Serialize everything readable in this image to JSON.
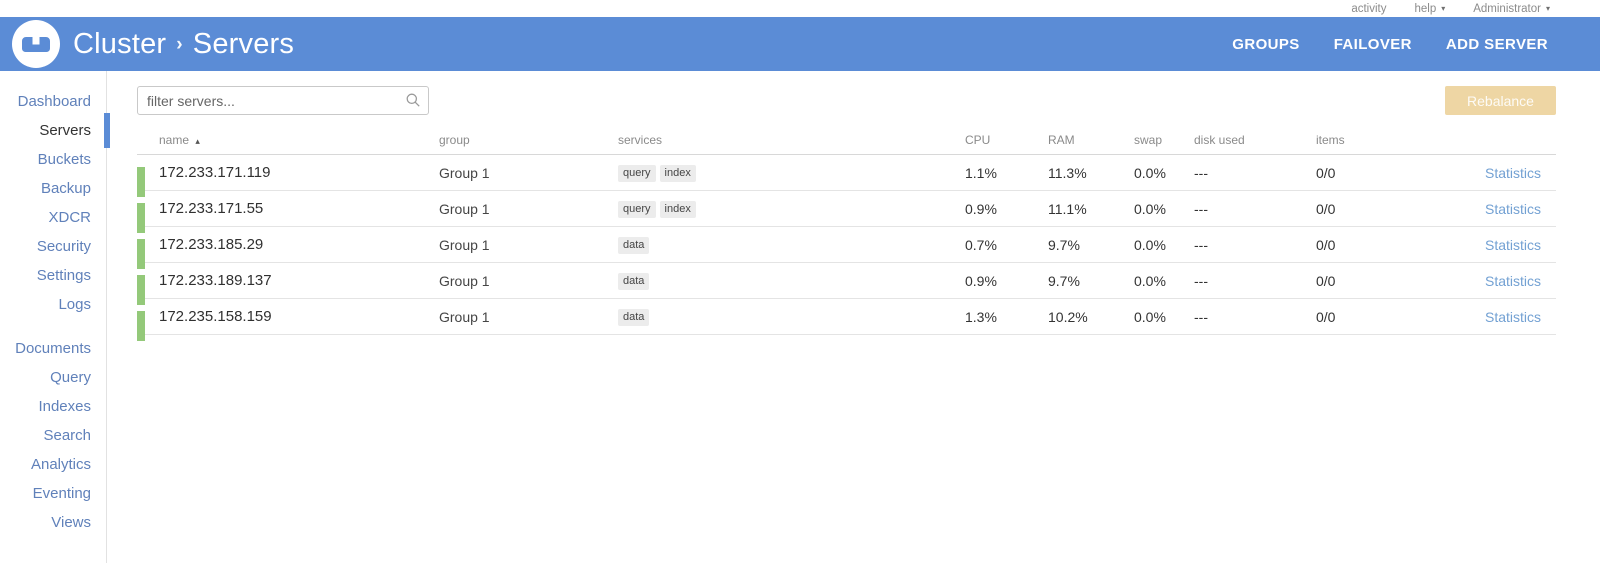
{
  "topbar": {
    "activity": "activity",
    "help": "help",
    "user": "Administrator"
  },
  "appbar": {
    "breadcrumb_root": "Cluster",
    "breadcrumb_sep": "›",
    "breadcrumb_page": "Servers",
    "actions": {
      "groups": "GROUPS",
      "failover": "FAILOVER",
      "add_server": "ADD SERVER"
    }
  },
  "sidebar": {
    "active": "Servers",
    "group1": [
      "Dashboard",
      "Servers",
      "Buckets",
      "Backup",
      "XDCR",
      "Security",
      "Settings",
      "Logs"
    ],
    "group2": [
      "Documents",
      "Query",
      "Indexes",
      "Search",
      "Analytics",
      "Eventing",
      "Views"
    ]
  },
  "toolbar": {
    "filter_placeholder": "filter servers...",
    "rebalance_label": "Rebalance"
  },
  "table": {
    "headers": {
      "name": "name",
      "group": "group",
      "services": "services",
      "cpu": "CPU",
      "ram": "RAM",
      "swap": "swap",
      "disk": "disk used",
      "items": "items"
    },
    "sort": {
      "column": "name",
      "direction": "asc",
      "arrow": "▴"
    },
    "rows": [
      {
        "name": "172.233.171.119",
        "group": "Group 1",
        "services": [
          "query",
          "index"
        ],
        "cpu": "1.1%",
        "ram": "11.3%",
        "swap": "0.0%",
        "disk": "---",
        "items": "0/0",
        "stats_label": "Statistics"
      },
      {
        "name": "172.233.171.55",
        "group": "Group 1",
        "services": [
          "query",
          "index"
        ],
        "cpu": "0.9%",
        "ram": "11.1%",
        "swap": "0.0%",
        "disk": "---",
        "items": "0/0",
        "stats_label": "Statistics"
      },
      {
        "name": "172.233.185.29",
        "group": "Group 1",
        "services": [
          "data"
        ],
        "cpu": "0.7%",
        "ram": "9.7%",
        "swap": "0.0%",
        "disk": "---",
        "items": "0/0",
        "stats_label": "Statistics"
      },
      {
        "name": "172.233.189.137",
        "group": "Group 1",
        "services": [
          "data"
        ],
        "cpu": "0.9%",
        "ram": "9.7%",
        "swap": "0.0%",
        "disk": "---",
        "items": "0/0",
        "stats_label": "Statistics"
      },
      {
        "name": "172.235.158.159",
        "group": "Group 1",
        "services": [
          "data"
        ],
        "cpu": "1.3%",
        "ram": "10.2%",
        "swap": "0.0%",
        "disk": "---",
        "items": "0/0",
        "stats_label": "Statistics"
      }
    ]
  },
  "colors": {
    "header_bg": "#5b8cd6",
    "sidebar_link": "#6081ba",
    "active_text": "#333333",
    "healthy_green": "#94c97a",
    "rebalance_disabled_bg": "#eed6a4",
    "statistics_link": "#73a1d3",
    "badge_bg": "#ececec"
  }
}
